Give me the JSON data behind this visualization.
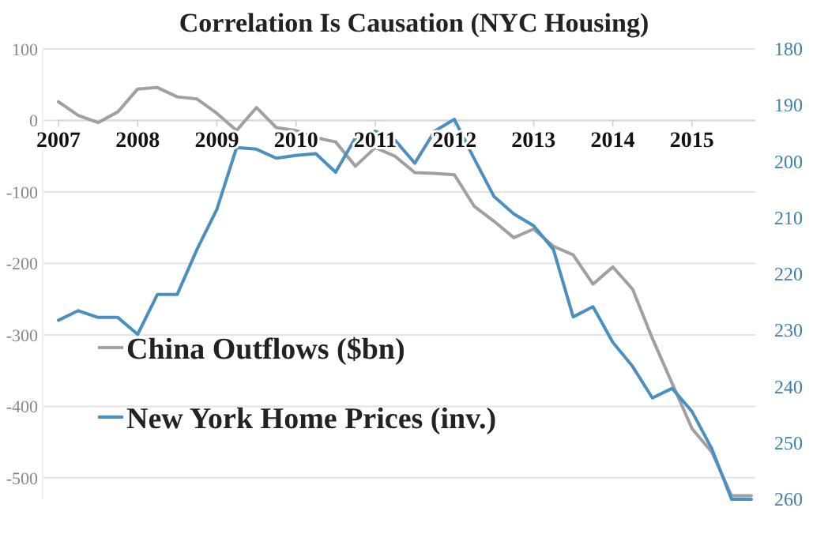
{
  "chart_data": {
    "type": "line",
    "title": "Correlation Is Causation (NYC Housing)",
    "x": [
      2007,
      2007.25,
      2007.5,
      2007.75,
      2008,
      2008.25,
      2008.5,
      2008.75,
      2009,
      2009.25,
      2009.5,
      2009.75,
      2010,
      2010.25,
      2010.5,
      2010.75,
      2011,
      2011.25,
      2011.5,
      2011.75,
      2012,
      2012.25,
      2012.5,
      2012.75,
      2013,
      2013.25,
      2013.5,
      2013.75,
      2014,
      2014.25,
      2014.5,
      2014.75,
      2015,
      2015.25,
      2015.5,
      2015.75
    ],
    "series": [
      {
        "name": "China Outflows ($bn)",
        "color": "#a0a0a0",
        "values": [
          26,
          7,
          -3,
          12,
          44,
          46,
          33,
          30,
          10,
          -14,
          18,
          -10,
          -14,
          -24,
          -30,
          -64,
          -38,
          -50,
          -73,
          -74,
          -76,
          -120,
          -141,
          -164,
          -152,
          -176,
          -188,
          -229,
          -205,
          -236,
          -305,
          -368,
          -431,
          -464,
          -525,
          -525
        ]
      },
      {
        "name": "New York Home Prices (inv.)",
        "color": "#4a8fc0",
        "axis": "y2",
        "values": [
          228.2,
          226.5,
          227.7,
          227.7,
          230.7,
          223.6,
          223.6,
          215.6,
          208.5,
          197.5,
          197.8,
          199.4,
          198.9,
          198.6,
          201.9,
          195.8,
          194.6,
          196.2,
          200.3,
          194.6,
          192.5,
          199.5,
          206.2,
          209.3,
          211.4,
          215.6,
          227.6,
          225.8,
          232.1,
          236.4,
          242,
          240.3,
          244.4,
          251,
          260,
          260
        ]
      }
    ],
    "xlim": [
      2007,
      2015.8
    ],
    "xticks": [
      2007,
      2008,
      2009,
      2010,
      2011,
      2012,
      2013,
      2014,
      2015
    ],
    "ylim": [
      -530,
      100
    ],
    "yticks": [
      -500,
      -400,
      -300,
      -200,
      -100,
      0,
      100
    ],
    "y2lim": [
      260,
      180
    ],
    "y2ticks": [
      180,
      190,
      200,
      210,
      220,
      230,
      240,
      250,
      260
    ],
    "grid": "y",
    "legend": "left",
    "marker": "none",
    "line_style": "solid"
  }
}
